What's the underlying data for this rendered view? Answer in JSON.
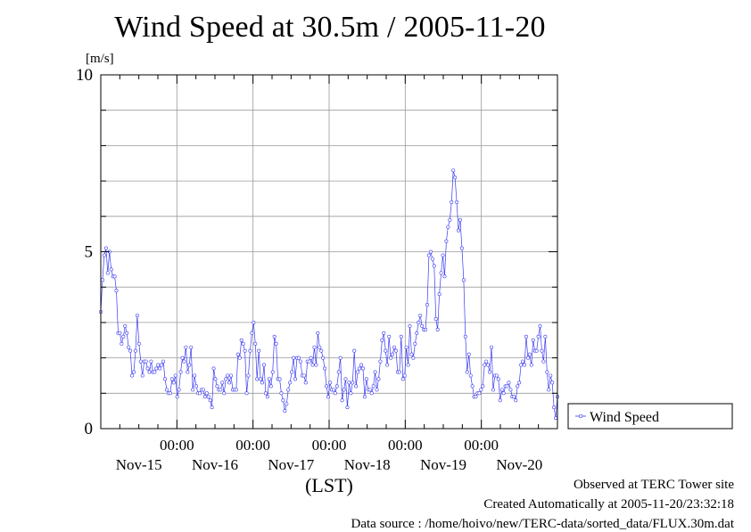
{
  "chart_data": {
    "type": "line",
    "title": "Wind Speed at 30.5m / 2005-11-20",
    "ylabel": "[m/s]",
    "xlabel": "(LST)",
    "ylim": [
      0,
      10
    ],
    "xlim_hours": [
      0,
      144
    ],
    "y_ticks": [
      0,
      5,
      10
    ],
    "y_minor_step": 1,
    "x_major_ticks": [
      24,
      48,
      72,
      96,
      120
    ],
    "x_tick_time_label": "00:00",
    "x_day_labels": [
      "Nov-15",
      "Nov-16",
      "Nov-17",
      "Nov-18",
      "Nov-19",
      "Nov-20"
    ],
    "grid": true,
    "legend_position": "right",
    "series": [
      {
        "name": "Wind Speed",
        "color": "#3a3af2",
        "marker": "circle",
        "values": [
          3.3,
          4.2,
          4.9,
          5.1,
          4.4,
          5.0,
          4.5,
          4.3,
          4.3,
          3.9,
          2.7,
          2.7,
          2.4,
          2.6,
          2.9,
          2.7,
          2.3,
          2.2,
          1.5,
          1.6,
          2.2,
          3.2,
          2.4,
          1.9,
          1.5,
          1.9,
          1.9,
          1.7,
          1.6,
          1.9,
          1.6,
          1.6,
          1.7,
          1.8,
          1.7,
          1.8,
          1.9,
          1.4,
          1.1,
          1.0,
          1.0,
          1.4,
          1.3,
          1.5,
          0.9,
          1.1,
          1.6,
          2.0,
          1.9,
          2.3,
          1.6,
          1.8,
          2.3,
          1.1,
          1.5,
          1.2,
          1.0,
          1.0,
          1.1,
          1.1,
          0.9,
          1.0,
          0.9,
          0.8,
          0.6,
          1.7,
          1.4,
          1.2,
          1.1,
          1.1,
          1.3,
          1.0,
          1.4,
          1.5,
          1.3,
          1.5,
          1.1,
          1.1,
          1.1,
          2.1,
          2.0,
          2.5,
          2.4,
          2.2,
          1.0,
          1.5,
          2.2,
          2.7,
          3.0,
          2.4,
          1.4,
          2.2,
          1.4,
          1.3,
          1.8,
          1.0,
          0.9,
          1.4,
          1.2,
          1.6,
          2.6,
          2.4,
          1.4,
          1.4,
          1.0,
          0.8,
          0.5,
          0.7,
          1.1,
          1.3,
          1.6,
          2.0,
          1.4,
          2.0,
          2.0,
          1.9,
          1.5,
          1.5,
          1.3,
          1.9,
          1.9,
          2.0,
          1.8,
          2.3,
          1.8,
          2.7,
          2.3,
          2.2,
          2.0,
          1.7,
          1.2,
          0.9,
          1.3,
          1.1,
          1.1,
          1.0,
          1.2,
          1.6,
          2.0,
          0.8,
          1.1,
          1.4,
          0.6,
          1.3,
          1.0,
          1.3,
          2.2,
          1.2,
          1.6,
          1.7,
          1.8,
          1.7,
          0.9,
          1.4,
          1.1,
          1.1,
          1.0,
          1.2,
          1.6,
          1.1,
          1.4,
          1.9,
          2.5,
          2.7,
          2.2,
          1.8,
          2.6,
          2.0,
          2.1,
          2.3,
          2.2,
          1.6,
          1.6,
          2.6,
          1.4,
          1.5,
          2.3,
          1.8,
          2.9,
          2.1,
          2.0,
          2.4,
          2.7,
          3.0,
          3.2,
          2.9,
          2.8,
          2.8,
          3.5,
          4.9,
          5.0,
          4.8,
          4.6,
          3.1,
          2.8,
          3.8,
          4.4,
          4.9,
          4.3,
          5.3,
          5.7,
          5.9,
          6.4,
          7.3,
          7.1,
          6.4,
          5.6,
          5.9,
          5.1,
          4.2,
          2.6,
          1.6,
          2.1,
          1.5,
          1.2,
          0.9,
          0.9,
          1.0,
          1.0,
          1.1,
          1.2,
          1.8,
          1.9,
          1.8,
          1.6,
          2.3,
          1.1,
          1.5,
          1.5,
          1.4,
          0.8,
          1.1,
          1.0,
          1.2,
          1.2,
          1.3,
          1.1,
          0.9,
          0.9,
          0.8,
          1.2,
          1.3,
          1.8,
          1.9,
          1.8,
          2.6,
          2.0,
          2.1,
          1.8,
          2.5,
          2.2,
          2.2,
          2.6,
          2.9,
          2.2,
          1.9,
          2.6,
          1.6,
          1.1,
          1.5,
          1.3,
          0.6,
          0.3,
          0.9
        ]
      }
    ]
  },
  "footer": {
    "line1": "Observed at TERC Tower site",
    "line2": "Created Automatically at 2005-11-20/23:32:18",
    "line3": "Data source : /home/hoivo/new/TERC-data/sorted_data/FLUX.30m.dat"
  }
}
